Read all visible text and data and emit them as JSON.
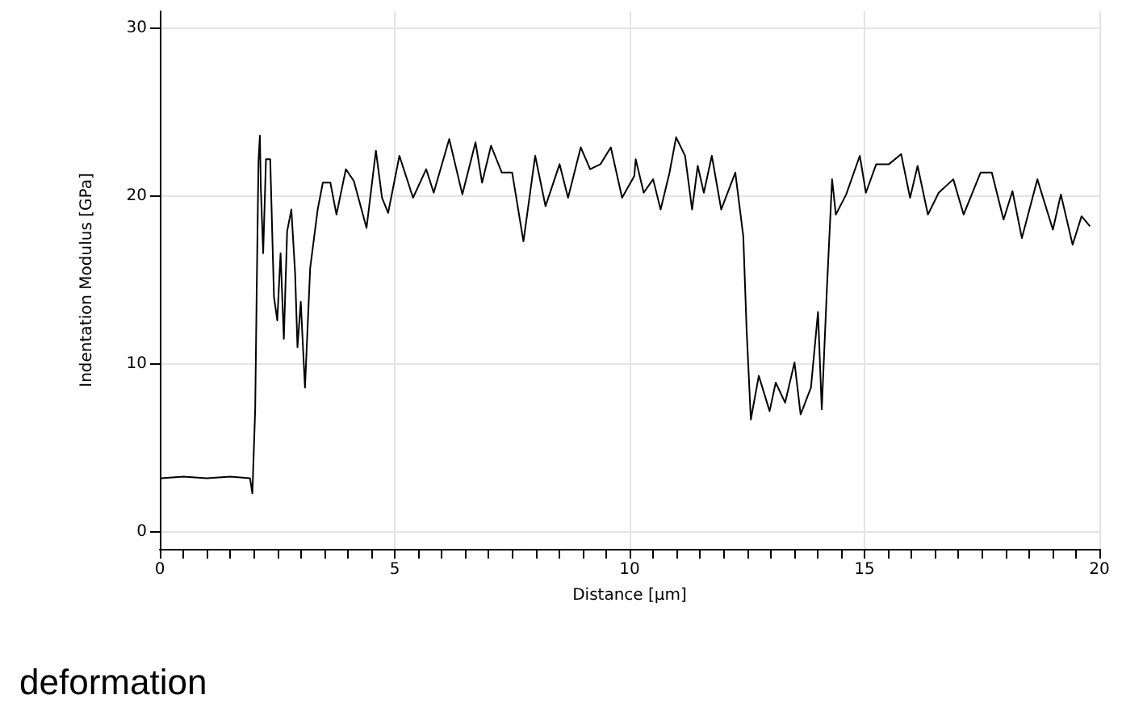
{
  "chart_data": {
    "type": "line",
    "xlabel": "Distance [µm]",
    "ylabel": "Indentation Modulus [GPa]",
    "annotations": [
      "deformation"
    ],
    "xlim": [
      0,
      20
    ],
    "xticks": [
      0,
      5,
      10,
      15,
      20
    ],
    "ylim": [
      -1,
      31
    ],
    "yticks": [
      0,
      10,
      20,
      30
    ],
    "grid": true,
    "marker": "none",
    "line_style": "solid",
    "series": [
      {
        "color": "#000000",
        "x": [
          0.03,
          0.5,
          1.0,
          1.5,
          1.92,
          1.97,
          2.03,
          2.06,
          2.1,
          2.13,
          2.15,
          2.2,
          2.26,
          2.35,
          2.43,
          2.5,
          2.57,
          2.64,
          2.71,
          2.8,
          2.88,
          2.93,
          3.0,
          3.09,
          3.2,
          3.36,
          3.47,
          3.63,
          3.76,
          3.96,
          4.13,
          4.4,
          4.6,
          4.73,
          4.86,
          5.1,
          5.39,
          5.67,
          5.83,
          6.16,
          6.44,
          6.72,
          6.86,
          7.05,
          7.28,
          7.5,
          7.74,
          7.99,
          8.21,
          8.51,
          8.69,
          8.96,
          9.16,
          9.38,
          9.6,
          9.84,
          10.1,
          10.13,
          10.3,
          10.5,
          10.66,
          10.85,
          10.99,
          11.18,
          11.33,
          11.45,
          11.58,
          11.75,
          11.95,
          12.25,
          12.42,
          12.49,
          12.58,
          12.75,
          12.98,
          13.11,
          13.31,
          13.51,
          13.64,
          13.86,
          14.01,
          14.09,
          14.2,
          14.31,
          14.39,
          14.61,
          14.9,
          15.03,
          15.25,
          15.52,
          15.78,
          15.97,
          16.13,
          16.35,
          16.58,
          16.89,
          17.11,
          17.47,
          17.71,
          17.96,
          18.15,
          18.35,
          18.68,
          19.01,
          19.18,
          19.43,
          19.62,
          19.8
        ],
        "values": [
          3.2,
          3.3,
          3.2,
          3.3,
          3.2,
          2.3,
          7.3,
          13.9,
          22.1,
          23.6,
          20.5,
          16.6,
          22.2,
          22.2,
          14.0,
          12.6,
          16.6,
          11.5,
          17.9,
          19.2,
          15.4,
          11.0,
          13.7,
          8.6,
          15.7,
          19.2,
          20.8,
          20.8,
          18.9,
          21.6,
          20.9,
          18.1,
          22.7,
          19.9,
          19.0,
          22.4,
          19.9,
          21.6,
          20.2,
          23.4,
          20.1,
          23.2,
          20.8,
          23.0,
          21.4,
          21.4,
          17.3,
          22.4,
          19.4,
          21.9,
          19.9,
          22.9,
          21.6,
          21.9,
          22.9,
          19.9,
          21.2,
          22.2,
          20.2,
          21.0,
          19.2,
          21.4,
          23.5,
          22.4,
          19.2,
          21.8,
          20.2,
          22.4,
          19.2,
          21.4,
          17.6,
          12.1,
          6.7,
          9.3,
          7.2,
          8.9,
          7.7,
          10.1,
          7.0,
          8.6,
          13.1,
          7.3,
          14.5,
          21.0,
          18.9,
          20.1,
          22.4,
          20.2,
          21.9,
          21.9,
          22.5,
          19.9,
          21.8,
          18.9,
          20.2,
          21.0,
          18.9,
          21.4,
          21.4,
          18.6,
          20.3,
          17.5,
          21.0,
          18.0,
          20.1,
          17.1,
          18.8,
          18.2
        ]
      }
    ]
  }
}
